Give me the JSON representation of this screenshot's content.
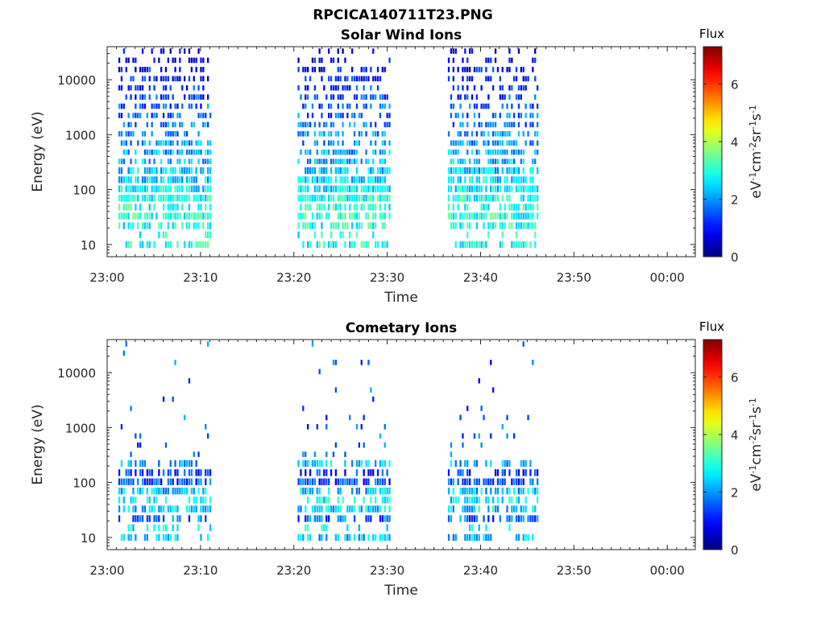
{
  "figure_title": "RPCICA140711T23.PNG",
  "colors": {
    "axis": "#262626"
  },
  "chart_data": [
    {
      "type": "heatmap",
      "title": "Solar Wind Ions",
      "xlabel": "Time",
      "ylabel": "Energy (eV)",
      "y_scale": "log",
      "ylim": [
        6,
        40000
      ],
      "x_tick_labels": [
        "23:00",
        "23:10",
        "23:20",
        "23:30",
        "23:40",
        "23:50",
        "00:00"
      ],
      "x_tick_minutes": [
        0,
        10,
        20,
        30,
        40,
        50,
        60
      ],
      "xlim_minutes": [
        0,
        63
      ],
      "y_ticks": [
        10,
        100,
        1000,
        10000
      ],
      "y_tick_labels": [
        "10",
        "100",
        "1000",
        "10000"
      ],
      "colorbar": {
        "title": "Flux",
        "label": "eV-1cm-2sr-1s-1",
        "range": [
          0,
          7.3
        ],
        "ticks": [
          0,
          2,
          4,
          6
        ],
        "tick_labels": [
          "0",
          "2",
          "4",
          "6"
        ]
      },
      "data_intervals_minutes": [
        [
          1.2,
          11.0
        ],
        [
          20.4,
          30.2
        ],
        [
          36.5,
          46.2
        ]
      ],
      "energy_bins_eV": [
        10,
        15,
        22,
        33,
        48,
        70,
        103,
        151,
        222,
        326,
        480,
        705,
        1036,
        1523,
        2239,
        3291,
        4838,
        7111,
        10453,
        15365,
        22586,
        33199
      ],
      "profile": {
        "description_values": "typical log10-flux per energy bin",
        "flux_by_bin": [
          2.9,
          2.8,
          2.9,
          3.0,
          3.0,
          2.9,
          2.6,
          2.4,
          2.3,
          2.2,
          2.1,
          2.0,
          1.9,
          1.8,
          1.6,
          1.5,
          1.3,
          1.2,
          1.0,
          0.9,
          0.7,
          0.6
        ],
        "fill_prob_by_bin": [
          0.55,
          0.15,
          0.7,
          0.8,
          0.6,
          0.85,
          0.85,
          0.8,
          0.75,
          0.7,
          0.65,
          0.6,
          0.55,
          0.55,
          0.55,
          0.5,
          0.5,
          0.5,
          0.45,
          0.4,
          0.35,
          0.25
        ]
      }
    },
    {
      "type": "heatmap",
      "title": "Cometary Ions",
      "xlabel": "Time",
      "ylabel": "Energy (eV)",
      "y_scale": "log",
      "ylim": [
        6,
        40000
      ],
      "x_tick_labels": [
        "23:00",
        "23:10",
        "23:20",
        "23:30",
        "23:40",
        "23:50",
        "00:00"
      ],
      "x_tick_minutes": [
        0,
        10,
        20,
        30,
        40,
        50,
        60
      ],
      "xlim_minutes": [
        0,
        63
      ],
      "y_ticks": [
        10,
        100,
        1000,
        10000
      ],
      "y_tick_labels": [
        "10",
        "100",
        "1000",
        "10000"
      ],
      "colorbar": {
        "title": "Flux",
        "label": "eV-1cm-2sr-1s-1",
        "range": [
          0,
          7.3
        ],
        "ticks": [
          0,
          2,
          4,
          6
        ],
        "tick_labels": [
          "0",
          "2",
          "4",
          "6"
        ]
      },
      "data_intervals_minutes": [
        [
          1.2,
          11.0
        ],
        [
          20.4,
          30.2
        ],
        [
          36.5,
          46.2
        ]
      ],
      "energy_bins_eV": [
        10,
        15,
        22,
        33,
        48,
        70,
        103,
        151,
        222,
        326,
        480,
        705,
        1036,
        1523,
        2239,
        3291,
        4838,
        7111,
        10453,
        15365,
        22586,
        33199
      ],
      "profile": {
        "description_values": "typical log10-flux per energy bin",
        "flux_by_bin": [
          2.2,
          2.8,
          1.6,
          2.4,
          2.6,
          2.3,
          1.5,
          1.2,
          2.2,
          1.8,
          1.6,
          1.6,
          1.5,
          1.5,
          1.6,
          1.6,
          1.6,
          1.5,
          1.5,
          1.5,
          1.5,
          1.5
        ],
        "fill_prob_by_bin": [
          0.55,
          0.15,
          0.55,
          0.65,
          0.55,
          0.6,
          0.7,
          0.55,
          0.45,
          0.12,
          0.08,
          0.07,
          0.05,
          0.04,
          0.04,
          0.03,
          0.03,
          0.02,
          0.02,
          0.02,
          0.015,
          0.01
        ]
      }
    }
  ]
}
